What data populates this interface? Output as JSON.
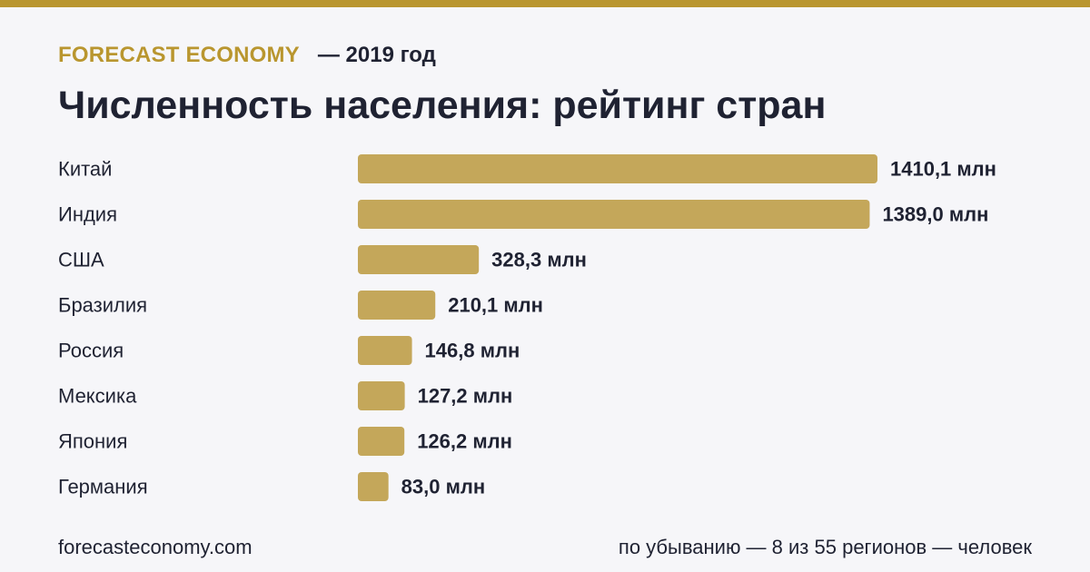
{
  "header": {
    "brand": "FORECAST ECONOMY",
    "year": "— 2019 год"
  },
  "title": "Численность населения: рейтинг стран",
  "colors": {
    "accent": "#b9962f",
    "bar": "#c4a75a",
    "text": "#1f2232",
    "background": "#f6f6f9"
  },
  "chart_data": {
    "type": "bar",
    "orientation": "horizontal",
    "categories": [
      "Китай",
      "Индия",
      "США",
      "Бразилия",
      "Россия",
      "Мексика",
      "Япония",
      "Германия"
    ],
    "values": [
      1410.1,
      1389.0,
      328.3,
      210.1,
      146.8,
      127.2,
      126.2,
      83.0
    ],
    "value_labels": [
      "1410,1 млн",
      "1389,0 млн",
      "328,3 млн",
      "210,1 млн",
      "146,8 млн",
      "127,2 млн",
      "126,2 млн",
      "83,0 млн"
    ],
    "unit": "млн",
    "title": "Численность населения: рейтинг стран",
    "xlabel": "",
    "ylabel": "",
    "grid": false,
    "legend": "none"
  },
  "footer": {
    "source": "forecasteconomy.com",
    "note": "по убыванию — 8 из 55 регионов — человек"
  }
}
